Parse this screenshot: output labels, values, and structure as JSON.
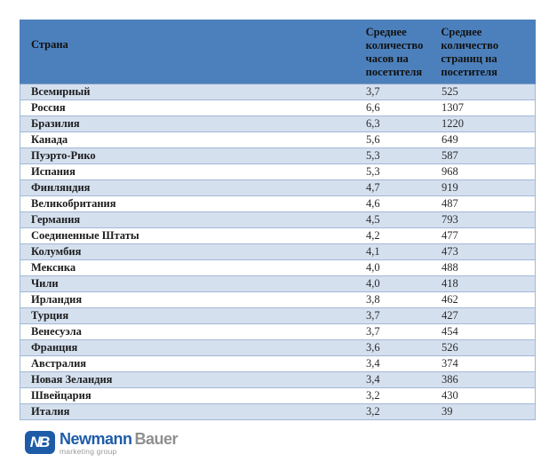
{
  "table": {
    "columns": [
      {
        "label": "Страна"
      },
      {
        "label": "Среднее количество часов на посетителя"
      },
      {
        "label": "Среднее количество страниц на посетителя"
      }
    ],
    "rows": [
      {
        "country": "Всемирный",
        "hours": "3,7",
        "pages": "525"
      },
      {
        "country": "Россия",
        "hours": "6,6",
        "pages": "1307"
      },
      {
        "country": "Бразилия",
        "hours": "6,3",
        "pages": "1220"
      },
      {
        "country": "Канада",
        "hours": "5,6",
        "pages": "649"
      },
      {
        "country": "Пуэрто-Рико",
        "hours": "5,3",
        "pages": "587"
      },
      {
        "country": "Испания",
        "hours": "5,3",
        "pages": "968"
      },
      {
        "country": "Финляндия",
        "hours": "4,7",
        "pages": "919"
      },
      {
        "country": "Великобритания",
        "hours": "4,6",
        "pages": "487"
      },
      {
        "country": "Германия",
        "hours": "4,5",
        "pages": "793"
      },
      {
        "country": "Соединенные Штаты",
        "hours": "4,2",
        "pages": "477"
      },
      {
        "country": "Колумбия",
        "hours": "4,1",
        "pages": "473"
      },
      {
        "country": "Мексика",
        "hours": "4,0",
        "pages": "488"
      },
      {
        "country": "Чили",
        "hours": "4,0",
        "pages": "418"
      },
      {
        "country": "Ирландия",
        "hours": "3,8",
        "pages": "462"
      },
      {
        "country": "Турция",
        "hours": "3,7",
        "pages": "427"
      },
      {
        "country": "Венесуэла",
        "hours": "3,7",
        "pages": "454"
      },
      {
        "country": "Франция",
        "hours": "3,6",
        "pages": "526"
      },
      {
        "country": "Австралия",
        "hours": "3,4",
        "pages": "374"
      },
      {
        "country": "Новая Зеландия",
        "hours": "3,4",
        "pages": "386"
      },
      {
        "country": "Швейцария",
        "hours": "3,2",
        "pages": "430"
      },
      {
        "country": "Италия",
        "hours": "3,2",
        "pages": "39"
      }
    ]
  },
  "logo": {
    "badge": "NB",
    "name_primary": "Newmann",
    "name_secondary": "Bauer",
    "tagline": "marketing group"
  },
  "colors": {
    "header_bg": "#4C80BC",
    "alt_row_bg": "#D5E0EF",
    "row_border": "#A2B8D5",
    "logo_blue": "#1E5CA8",
    "logo_gray": "#8F8F8F"
  }
}
